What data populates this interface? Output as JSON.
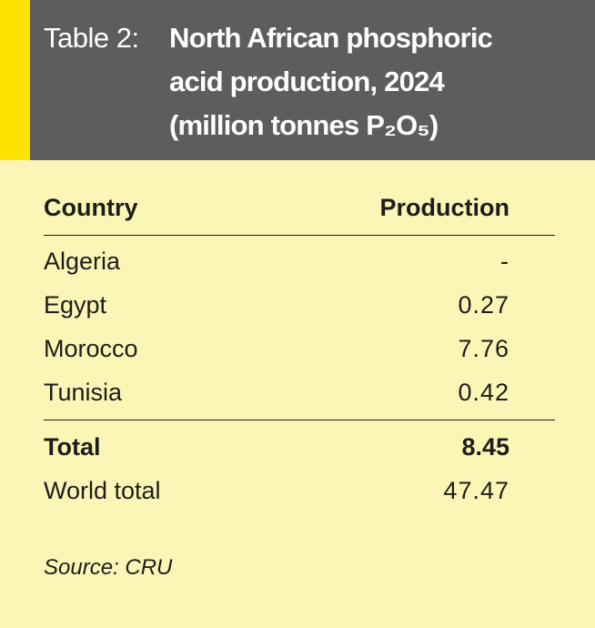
{
  "header": {
    "label": "Table 2:",
    "title": [
      "North African phosphoric",
      "acid production, 2024",
      "(million tonnes P₂O₅)"
    ]
  },
  "table": {
    "columns": [
      "Country",
      "Production"
    ],
    "rows": [
      [
        "Algeria",
        "-"
      ],
      [
        "Egypt",
        "0.27"
      ],
      [
        "Morocco",
        "7.76"
      ],
      [
        "Tunisia",
        "0.42"
      ]
    ],
    "total": [
      "Total",
      "8.45"
    ],
    "world_total": [
      "World total",
      "47.47"
    ]
  },
  "source": "Source: CRU"
}
